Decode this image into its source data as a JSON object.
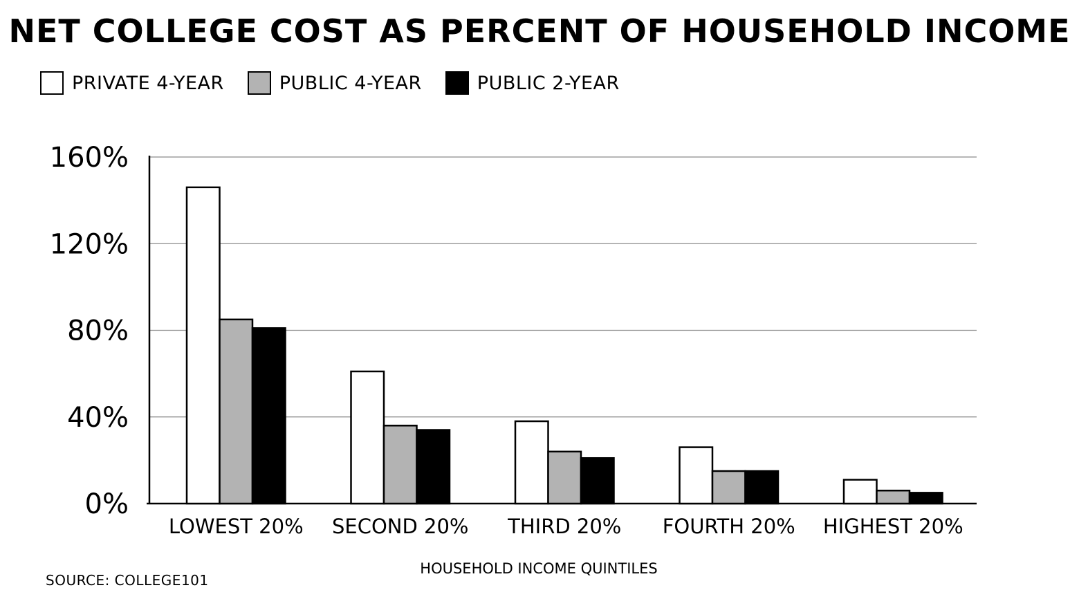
{
  "chart_data": {
    "type": "bar",
    "title": "NET COLLEGE COST AS PERCENT OF HOUSEHOLD INCOME",
    "xlabel": "HOUSEHOLD INCOME QUINTILES",
    "ylabel": "",
    "categories": [
      "LOWEST 20%",
      "SECOND 20%",
      "THIRD 20%",
      "FOURTH 20%",
      "HIGHEST 20%"
    ],
    "series": [
      {
        "name": "PRIVATE 4-YEAR",
        "color": "#ffffff",
        "values": [
          146,
          61,
          38,
          26,
          11
        ]
      },
      {
        "name": "PUBLIC 4-YEAR",
        "color": "#b3b3b3",
        "values": [
          85,
          36,
          24,
          15,
          6
        ]
      },
      {
        "name": "PUBLIC 2-YEAR",
        "color": "#000000",
        "values": [
          81,
          34,
          21,
          15,
          5
        ]
      }
    ],
    "yticks": [
      "0%",
      "40%",
      "80%",
      "120%",
      "160%"
    ],
    "ylim": [
      0,
      160
    ],
    "grid": true,
    "legend_position": "top-left"
  },
  "source": "SOURCE: COLLEGE101"
}
